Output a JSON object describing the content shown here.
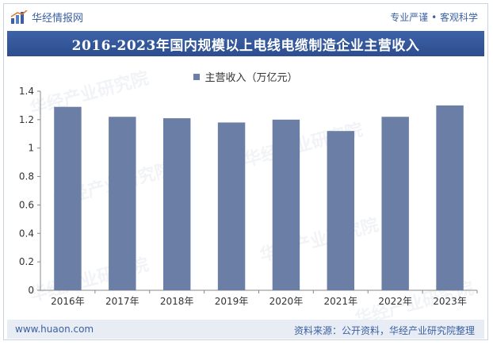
{
  "header": {
    "brand_name": "华经情报网",
    "tagline": "专业严谨 • 客观科学"
  },
  "footer": {
    "url": "www.huaon.com",
    "source": "资料来源：公开资料，华经产业研究院整理"
  },
  "watermark": {
    "text": "华经产业研究院",
    "url_text": "www.huaon.com"
  },
  "colors": {
    "bar": "#6b7ea6",
    "title_bg": "#2f5196",
    "brand": "#3b5fa0"
  },
  "chart_data": {
    "type": "bar",
    "title": "2016-2023年国内规模以上电线电缆制造企业主营收入",
    "legend": "主营收入（万亿元）",
    "legend_position": "top-center",
    "categories": [
      "2016年",
      "2017年",
      "2018年",
      "2019年",
      "2020年",
      "2021年",
      "2022年",
      "2023年"
    ],
    "series": [
      {
        "name": "主营收入（万亿元）",
        "values": [
          1.29,
          1.22,
          1.21,
          1.18,
          1.2,
          1.12,
          1.22,
          1.3
        ]
      }
    ],
    "ylim": [
      0,
      1.4
    ],
    "yticks": [
      "0",
      "0.2",
      "0.4",
      "0.6",
      "0.8",
      "1",
      "1.2",
      "1.4"
    ],
    "grid": false
  }
}
